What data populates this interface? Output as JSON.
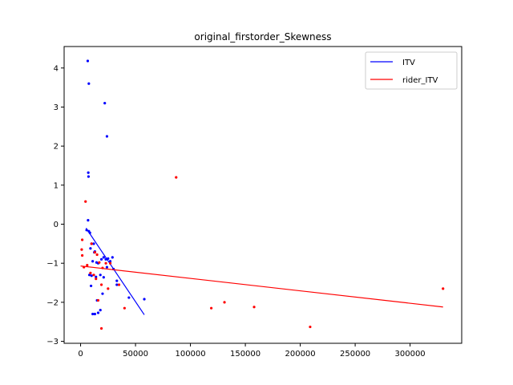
{
  "chart_data": {
    "type": "scatter",
    "title": "original_firstorder_Skewness",
    "xlabel": "",
    "ylabel": "",
    "xlim": [
      -15000,
      347000
    ],
    "ylim": [
      -3.05,
      4.55
    ],
    "x_ticks": [
      0,
      50000,
      100000,
      150000,
      200000,
      250000,
      300000
    ],
    "y_ticks": [
      -3,
      -2,
      -1,
      0,
      1,
      2,
      3,
      4
    ],
    "grid": false,
    "legend_position": "upper right",
    "series": [
      {
        "name": "ITV",
        "color": "#0000ff",
        "points": [
          [
            6500,
            4.18
          ],
          [
            7500,
            3.6
          ],
          [
            22000,
            3.1
          ],
          [
            24000,
            2.25
          ],
          [
            7000,
            1.32
          ],
          [
            7200,
            1.22
          ],
          [
            6800,
            0.1
          ],
          [
            5500,
            -0.15
          ],
          [
            7500,
            -0.18
          ],
          [
            8500,
            -0.22
          ],
          [
            10000,
            -0.5
          ],
          [
            12000,
            -0.5
          ],
          [
            13000,
            -0.7
          ],
          [
            12500,
            -0.72
          ],
          [
            9000,
            -0.62
          ],
          [
            11000,
            -0.95
          ],
          [
            14500,
            -0.98
          ],
          [
            16000,
            -1.0
          ],
          [
            19000,
            -0.9
          ],
          [
            21000,
            -0.85
          ],
          [
            23000,
            -0.9
          ],
          [
            25000,
            -0.88
          ],
          [
            27000,
            -0.95
          ],
          [
            29000,
            -0.85
          ],
          [
            24000,
            -1.1
          ],
          [
            30000,
            -1.15
          ],
          [
            8000,
            -1.3
          ],
          [
            10000,
            -1.32
          ],
          [
            14000,
            -1.35
          ],
          [
            18000,
            -1.3
          ],
          [
            21000,
            -1.36
          ],
          [
            33000,
            -1.45
          ],
          [
            9500,
            -1.58
          ],
          [
            20000,
            -1.78
          ],
          [
            15000,
            -1.95
          ],
          [
            44000,
            -1.88
          ],
          [
            58000,
            -1.92
          ],
          [
            11000,
            -2.3
          ],
          [
            13000,
            -2.3
          ],
          [
            16000,
            -2.27
          ],
          [
            18000,
            -2.2
          ],
          [
            33000,
            -1.55
          ]
        ],
        "fit": {
          "x": [
            5000,
            58000
          ],
          "y": [
            -0.1,
            -2.32
          ]
        }
      },
      {
        "name": "rider_ITV",
        "color": "#ff0000",
        "points": [
          [
            4500,
            0.58
          ],
          [
            87000,
            1.2
          ],
          [
            1500,
            -0.4
          ],
          [
            1000,
            -0.65
          ],
          [
            1500,
            -0.8
          ],
          [
            3000,
            -1.1
          ],
          [
            10000,
            -0.5
          ],
          [
            13000,
            -0.72
          ],
          [
            15000,
            -0.78
          ],
          [
            17000,
            -0.98
          ],
          [
            23000,
            -1.0
          ],
          [
            27000,
            -1.0
          ],
          [
            9000,
            -1.25
          ],
          [
            12000,
            -1.3
          ],
          [
            14000,
            -1.4
          ],
          [
            19000,
            -1.55
          ],
          [
            25000,
            -1.65
          ],
          [
            35000,
            -1.55
          ],
          [
            16000,
            -1.95
          ],
          [
            40000,
            -2.15
          ],
          [
            119000,
            -2.15
          ],
          [
            131000,
            -2.0
          ],
          [
            158000,
            -2.12
          ],
          [
            209000,
            -2.63
          ],
          [
            19000,
            -2.67
          ],
          [
            330000,
            -1.65
          ],
          [
            20000,
            -1.12
          ],
          [
            6000,
            -1.05
          ]
        ],
        "fit": {
          "x": [
            0,
            330000
          ],
          "y": [
            -1.07,
            -2.12
          ]
        }
      }
    ]
  }
}
